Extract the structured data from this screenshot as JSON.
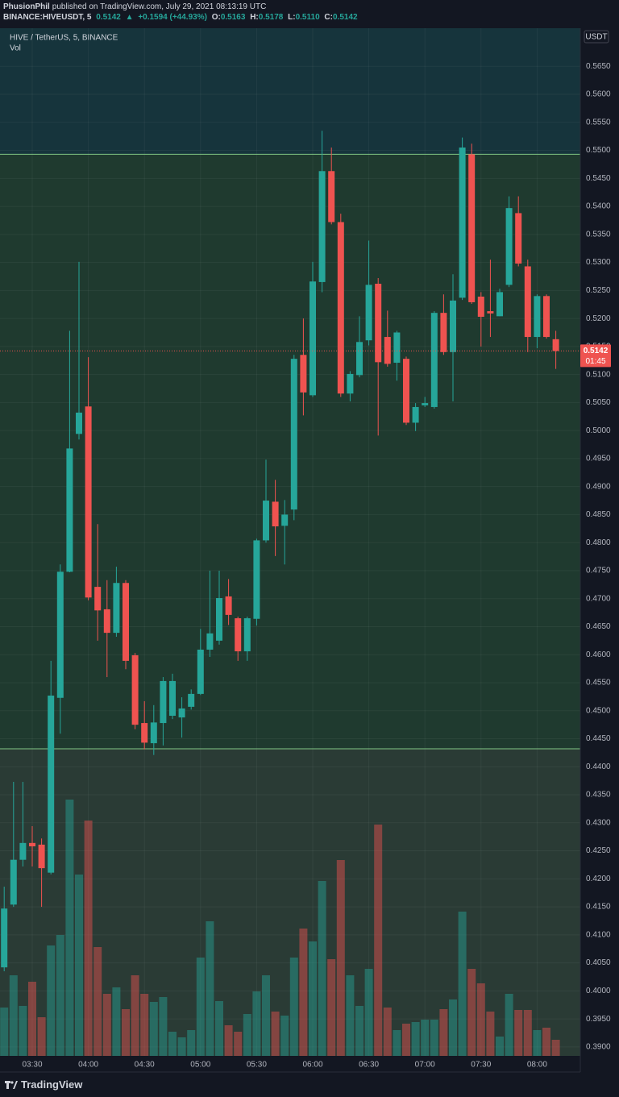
{
  "header": {
    "author": "PhusionPhil",
    "published": "published on TradingView.com, July 29, 2021 08:13:19 UTC",
    "symbol": "BINANCE:HIVEUSDT, 5",
    "last": "0.5142",
    "arrow": "▲",
    "change": "+0.1594 (+44.93%)",
    "o_label": "O:",
    "o": "0.5163",
    "h_label": "H:",
    "h": "0.5178",
    "l_label": "L:",
    "l": "0.5110",
    "c_label": "C:",
    "c": "0.5142"
  },
  "brand": "TradingView",
  "chart_data": {
    "type": "candlestick",
    "legend_title": "HIVE / TetherUS, 5, BINANCE",
    "volume_label": "Vol",
    "currency": "USDT",
    "price_label": "0.5142",
    "countdown": "01:45",
    "up_color": "#26a69a",
    "down_color": "#ef5350",
    "levels": [
      0.5493,
      0.4432
    ],
    "x": [
      "03:15",
      "03:20",
      "03:25",
      "03:30",
      "03:35",
      "03:40",
      "03:45",
      "03:50",
      "03:55",
      "04:00",
      "04:05",
      "04:10",
      "04:15",
      "04:20",
      "04:25",
      "04:30",
      "04:35",
      "04:40",
      "04:45",
      "04:50",
      "04:55",
      "05:00",
      "05:05",
      "05:10",
      "05:15",
      "05:20",
      "05:25",
      "05:30",
      "05:35",
      "05:40",
      "05:45",
      "05:50",
      "05:55",
      "06:00",
      "06:05",
      "06:10",
      "06:15",
      "06:20",
      "06:25",
      "06:30",
      "06:35",
      "06:40",
      "06:45",
      "06:50",
      "06:55",
      "07:00",
      "07:05",
      "07:10",
      "07:15",
      "07:20",
      "07:25",
      "07:30",
      "07:35",
      "07:40",
      "07:45",
      "07:50",
      "07:55",
      "08:00",
      "08:05",
      "08:10"
    ],
    "open": [
      0.4042,
      0.4154,
      0.4234,
      0.4264,
      0.4261,
      0.4211,
      0.4523,
      0.4748,
      0.4994,
      0.5043,
      0.4721,
      0.4681,
      0.4639,
      0.4728,
      0.4599,
      0.4478,
      0.4442,
      0.4478,
      0.4491,
      0.4488,
      0.4507,
      0.453,
      0.4609,
      0.4625,
      0.4704,
      0.4665,
      0.4606,
      0.4664,
      0.4804,
      0.4873,
      0.483,
      0.4859,
      0.5135,
      0.5063,
      0.5265,
      0.5463,
      0.5372,
      0.5066,
      0.5099,
      0.5161,
      0.5262,
      0.5167,
      0.5121,
      0.5128,
      0.5014,
      0.5045,
      0.5042,
      0.521,
      0.514,
      0.5237,
      0.5493,
      0.5239,
      0.5213,
      0.5204,
      0.526,
      0.5388,
      0.5293,
      0.5167,
      0.524,
      0.5163
    ],
    "high": [
      0.4186,
      0.4373,
      0.4373,
      0.4294,
      0.4272,
      0.4589,
      0.4761,
      0.5178,
      0.5301,
      0.5131,
      0.4833,
      0.4733,
      0.4757,
      0.4733,
      0.4603,
      0.4517,
      0.451,
      0.456,
      0.4566,
      0.4524,
      0.4538,
      0.4646,
      0.475,
      0.475,
      0.4735,
      0.4668,
      0.4668,
      0.4807,
      0.4948,
      0.4912,
      0.4876,
      0.5135,
      0.52,
      0.5301,
      0.5535,
      0.5505,
      0.5387,
      0.5106,
      0.5204,
      0.5339,
      0.5272,
      0.5214,
      0.5178,
      0.5132,
      0.5049,
      0.506,
      0.5213,
      0.5243,
      0.5279,
      0.5523,
      0.5512,
      0.5247,
      0.5305,
      0.5253,
      0.5418,
      0.5418,
      0.5305,
      0.5243,
      0.5243,
      0.5178
    ],
    "low": [
      0.4035,
      0.415,
      0.4222,
      0.4222,
      0.415,
      0.4208,
      0.4459,
      0.4747,
      0.4984,
      0.4697,
      0.4625,
      0.456,
      0.4632,
      0.4574,
      0.4467,
      0.4431,
      0.4421,
      0.4438,
      0.4485,
      0.4452,
      0.4502,
      0.4528,
      0.4596,
      0.4618,
      0.4653,
      0.4589,
      0.4589,
      0.4652,
      0.48,
      0.4776,
      0.4761,
      0.484,
      0.5027,
      0.506,
      0.5247,
      0.5368,
      0.506,
      0.5052,
      0.5095,
      0.5152,
      0.4991,
      0.5114,
      0.5089,
      0.501,
      0.4999,
      0.5042,
      0.5039,
      0.5135,
      0.5052,
      0.5233,
      0.5226,
      0.515,
      0.5167,
      0.5204,
      0.5256,
      0.5293,
      0.514,
      0.5147,
      0.5164,
      0.511
    ],
    "close": [
      0.4147,
      0.4234,
      0.4264,
      0.4258,
      0.4219,
      0.4527,
      0.4748,
      0.4968,
      0.5032,
      0.4702,
      0.4679,
      0.4639,
      0.4728,
      0.4589,
      0.4475,
      0.4443,
      0.4479,
      0.4553,
      0.4553,
      0.4504,
      0.453,
      0.4609,
      0.4638,
      0.4701,
      0.4671,
      0.4606,
      0.4665,
      0.4804,
      0.4875,
      0.4829,
      0.485,
      0.5128,
      0.5068,
      0.5266,
      0.5463,
      0.5372,
      0.5066,
      0.5101,
      0.5158,
      0.526,
      0.5122,
      0.5119,
      0.5175,
      0.5014,
      0.5042,
      0.5049,
      0.521,
      0.514,
      0.5232,
      0.5505,
      0.5229,
      0.5203,
      0.5209,
      0.5247,
      0.5397,
      0.5298,
      0.5167,
      0.524,
      0.5167,
      0.5142
    ],
    "volume": [
      60,
      100,
      62,
      92,
      48,
      137,
      150,
      318,
      225,
      292,
      135,
      77,
      85,
      58,
      100,
      77,
      67,
      73,
      30,
      23,
      32,
      122,
      167,
      68,
      38,
      30,
      52,
      80,
      100,
      55,
      50,
      122,
      158,
      142,
      217,
      120,
      243,
      100,
      62,
      108,
      287,
      60,
      32,
      40,
      42,
      45,
      45,
      58,
      70,
      179,
      108,
      90,
      55,
      24,
      77,
      57,
      57,
      32,
      35,
      20
    ],
    "ylim": [
      0.3884,
      0.5718
    ],
    "yticks": [
      {
        "value": 0.565,
        "label": "0.5650"
      },
      {
        "value": 0.56,
        "label": "0.5600"
      },
      {
        "value": 0.555,
        "label": "0.5550"
      },
      {
        "value": 0.55,
        "label": "0.5500"
      },
      {
        "value": 0.545,
        "label": "0.5450"
      },
      {
        "value": 0.54,
        "label": "0.5400"
      },
      {
        "value": 0.535,
        "label": "0.5350"
      },
      {
        "value": 0.53,
        "label": "0.5300"
      },
      {
        "value": 0.525,
        "label": "0.5250"
      },
      {
        "value": 0.52,
        "label": "0.5200"
      },
      {
        "value": 0.515,
        "label": "0.5150"
      },
      {
        "value": 0.51,
        "label": "0.5100"
      },
      {
        "value": 0.505,
        "label": "0.5050"
      },
      {
        "value": 0.5,
        "label": "0.5000"
      },
      {
        "value": 0.495,
        "label": "0.4950"
      },
      {
        "value": 0.49,
        "label": "0.4900"
      },
      {
        "value": 0.485,
        "label": "0.4850"
      },
      {
        "value": 0.48,
        "label": "0.4800"
      },
      {
        "value": 0.475,
        "label": "0.4750"
      },
      {
        "value": 0.47,
        "label": "0.4700"
      },
      {
        "value": 0.465,
        "label": "0.4650"
      },
      {
        "value": 0.46,
        "label": "0.4600"
      },
      {
        "value": 0.455,
        "label": "0.4550"
      },
      {
        "value": 0.45,
        "label": "0.4500"
      },
      {
        "value": 0.445,
        "label": "0.4450"
      },
      {
        "value": 0.44,
        "label": "0.4400"
      },
      {
        "value": 0.435,
        "label": "0.4350"
      },
      {
        "value": 0.43,
        "label": "0.4300"
      },
      {
        "value": 0.425,
        "label": "0.4250"
      },
      {
        "value": 0.42,
        "label": "0.4200"
      },
      {
        "value": 0.415,
        "label": "0.4150"
      },
      {
        "value": 0.41,
        "label": "0.4100"
      },
      {
        "value": 0.405,
        "label": "0.4050"
      },
      {
        "value": 0.4,
        "label": "0.4000"
      },
      {
        "value": 0.395,
        "label": "0.3950"
      },
      {
        "value": 0.39,
        "label": "0.3900"
      }
    ],
    "xticks": [
      "03:30",
      "04:00",
      "04:30",
      "05:00",
      "05:30",
      "06:00",
      "06:30",
      "07:00",
      "07:30",
      "08:00"
    ],
    "grid": true
  }
}
